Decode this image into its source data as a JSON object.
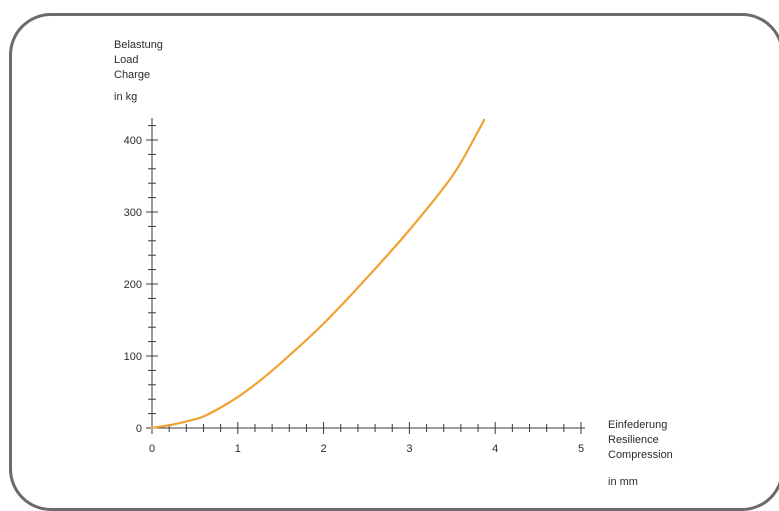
{
  "chart_data": {
    "type": "line",
    "ylabel_lines": [
      "Belastung",
      "Load",
      "Charge"
    ],
    "yunit": "in kg",
    "xlabel_lines": [
      "Einfederung",
      "Resilience",
      "Compression"
    ],
    "xunit": "in mm",
    "xlim": [
      0,
      5
    ],
    "ylim": [
      0,
      420
    ],
    "x_ticks": [
      0,
      1,
      2,
      3,
      4,
      5
    ],
    "y_ticks": [
      0,
      100,
      200,
      300,
      400
    ],
    "x_minor_step": 0.2,
    "y_minor_step": 20,
    "grid": false,
    "series": [
      {
        "color": "#f0a232",
        "x": [
          0,
          0.25,
          0.5,
          0.6,
          0.75,
          1.0,
          1.25,
          1.5,
          2.0,
          2.5,
          3.0,
          3.5,
          3.8,
          3.87
        ],
        "y": [
          0,
          5,
          12,
          16,
          25,
          43,
          65,
          90,
          145,
          208,
          275,
          350,
          412,
          428
        ]
      }
    ]
  }
}
